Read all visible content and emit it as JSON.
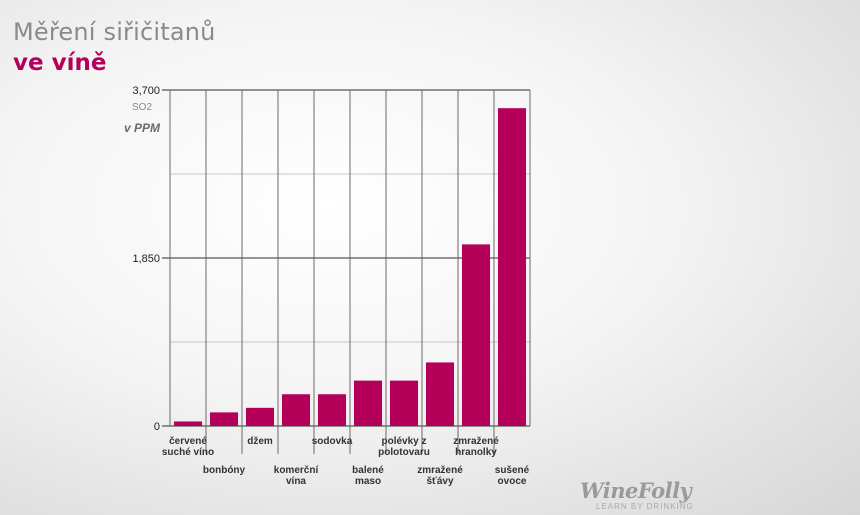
{
  "title": {
    "line1": "Měření siřičitanů",
    "line2": "ve víně"
  },
  "y_unit": {
    "top": "SO2",
    "bottom": "v PPM"
  },
  "logo": {
    "main": "WineFolly",
    "sub": "LEARN BY DRINKING"
  },
  "colors": {
    "bar": "#b5005a",
    "title_accent": "#b3005a"
  },
  "chart_data": {
    "type": "bar",
    "ylim": [
      0,
      3700
    ],
    "yticks": [
      {
        "value": 0,
        "label": "0"
      },
      {
        "value": 1850,
        "label": "1,850"
      },
      {
        "value": 3700,
        "label": "3,700"
      }
    ],
    "categories": [
      {
        "lines": [
          "červené",
          "suché víno"
        ],
        "row": "top"
      },
      {
        "lines": [
          "bonbóny"
        ],
        "row": "bottom"
      },
      {
        "lines": [
          "džem"
        ],
        "row": "top"
      },
      {
        "lines": [
          "komerční",
          "vína"
        ],
        "row": "bottom"
      },
      {
        "lines": [
          "sodovka"
        ],
        "row": "top"
      },
      {
        "lines": [
          "balené",
          "maso"
        ],
        "row": "bottom"
      },
      {
        "lines": [
          "polévky z",
          "polotovaru"
        ],
        "row": "top"
      },
      {
        "lines": [
          "zmražené",
          "šťávy"
        ],
        "row": "bottom"
      },
      {
        "lines": [
          "zmražené",
          "hranolky"
        ],
        "row": "top"
      },
      {
        "lines": [
          "sušené",
          "ovoce"
        ],
        "row": "bottom"
      }
    ],
    "values": [
      50,
      150,
      200,
      350,
      350,
      500,
      500,
      700,
      2000,
      3500
    ],
    "grid": true,
    "legend": "none"
  }
}
